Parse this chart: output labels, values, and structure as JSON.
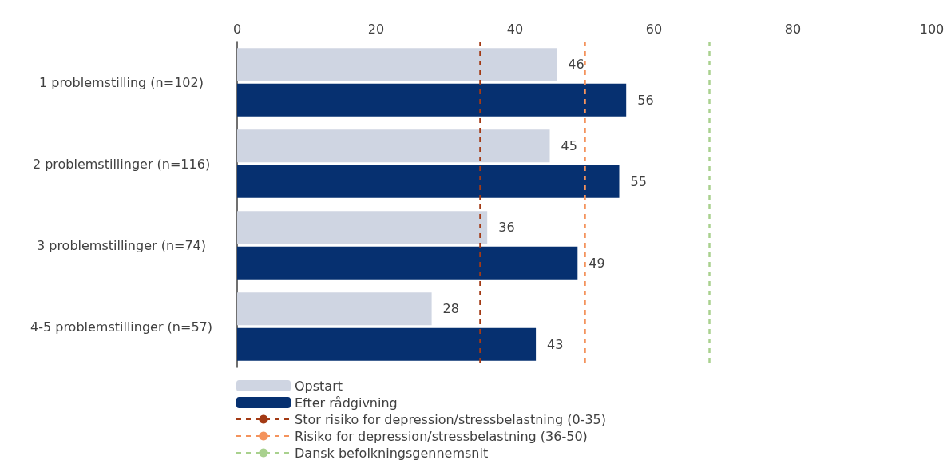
{
  "chart_data": {
    "type": "bar",
    "orientation": "horizontal",
    "categories": [
      "1 problemstilling (n=102)",
      "2 problemstillinger (n=116)",
      "3 problemstillinger (n=74)",
      "4-5 problemstillinger (n=57)"
    ],
    "series": [
      {
        "name": "Opstart",
        "color": "#cfd5e2",
        "values": [
          46,
          45,
          36,
          28
        ]
      },
      {
        "name": "Efter rådgivning",
        "color": "#063070",
        "values": [
          56,
          55,
          49,
          43
        ]
      }
    ],
    "xlim": [
      0,
      100
    ],
    "xticks": [
      0,
      20,
      40,
      60,
      80,
      100
    ],
    "data_labels": true,
    "grid": false,
    "legend": "bottom left",
    "ref_lines": [
      {
        "axis": "x",
        "value": 35,
        "label": "Stor risiko for depression/stressbelastning (0-35)",
        "color": "#a33a14",
        "line_style": "dashed"
      },
      {
        "axis": "x",
        "value": 50,
        "label": "Risiko for depression/stressbelastning (36-50)",
        "color": "#f4935c",
        "line_style": "dashed"
      },
      {
        "axis": "x",
        "value": 68,
        "label": "Dansk befolkningsgennemsnit",
        "color": "#a9d18e",
        "line_style": "dashed"
      }
    ]
  }
}
